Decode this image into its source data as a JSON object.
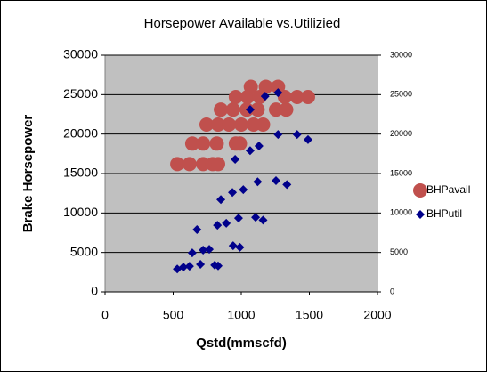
{
  "chart_data": {
    "type": "scatter",
    "title": "Horsepower Available vs.Utilizied",
    "x_label": "Qstd(mmscfd)",
    "y_label": "Brake Horsepower",
    "xlim": [
      0,
      2000
    ],
    "xticks": [
      0,
      500,
      1000,
      1500,
      2000
    ],
    "ylim": [
      0,
      30000
    ],
    "yticks": [
      0,
      5000,
      10000,
      15000,
      20000,
      25000,
      30000
    ],
    "y2lim": [
      0,
      30000
    ],
    "y2ticks": [
      0,
      5000,
      10000,
      15000,
      20000,
      25000,
      30000
    ],
    "grid": true,
    "legend": "right",
    "series": [
      {
        "name": "BHPavail",
        "color": "#c0504d",
        "marker": "circle",
        "x": [
          530,
          620,
          720,
          790,
          830,
          640,
          720,
          820,
          960,
          990,
          745,
          830,
          910,
          1000,
          1090,
          1160,
          850,
          940,
          1040,
          1120,
          1255,
          1330,
          960,
          1045,
          1135,
          1320,
          1410,
          1490,
          1070,
          1180,
          1270
        ],
        "values": [
          16200,
          16200,
          16200,
          16200,
          16200,
          18800,
          18800,
          18800,
          18800,
          18800,
          21200,
          21200,
          21200,
          21200,
          21200,
          21200,
          23100,
          23100,
          23100,
          23100,
          23100,
          23100,
          24700,
          24700,
          24700,
          24700,
          24700,
          24700,
          26000,
          26000,
          26000
        ]
      },
      {
        "name": "BHPutil",
        "color": "#00008b",
        "marker": "diamond",
        "axis": "y2",
        "x": [
          530,
          575,
          620,
          700,
          805,
          830,
          640,
          720,
          765,
          940,
          990,
          675,
          825,
          890,
          980,
          1105,
          1160,
          850,
          935,
          1015,
          1120,
          1255,
          1335,
          955,
          1065,
          1130,
          1270,
          1410,
          1490,
          1065,
          1175,
          1270
        ],
        "values": [
          2900,
          3150,
          3250,
          3500,
          3400,
          3300,
          4950,
          5300,
          5400,
          5850,
          5650,
          7900,
          8450,
          8700,
          9350,
          9450,
          9100,
          11700,
          12600,
          12950,
          13950,
          14100,
          13600,
          16800,
          17900,
          18500,
          19950,
          19950,
          19300,
          23100,
          24800,
          25250
        ]
      }
    ]
  }
}
